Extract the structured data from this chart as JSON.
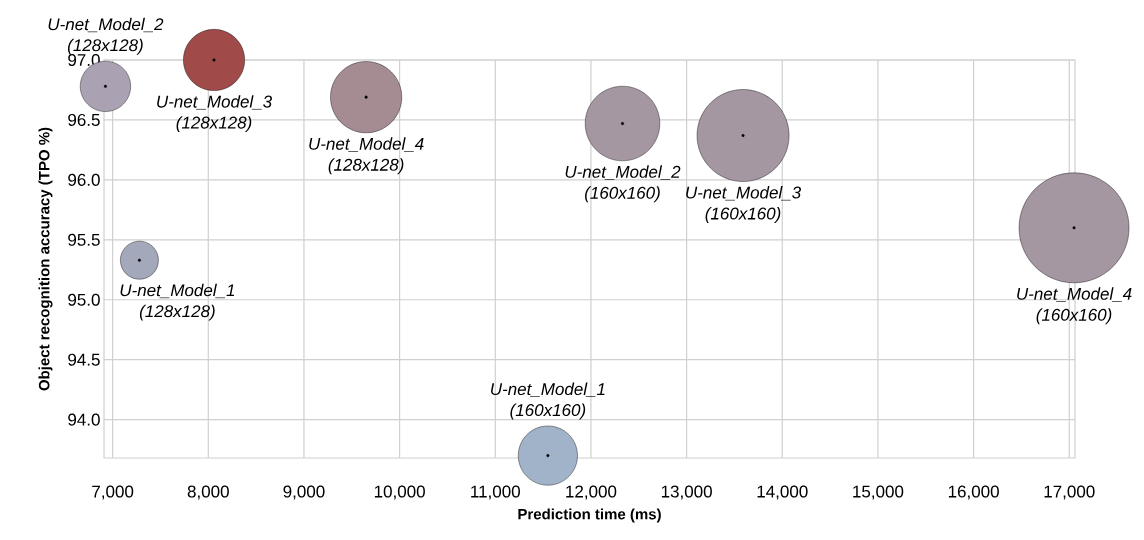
{
  "chart_data": {
    "type": "bubble",
    "xlabel": "Prediction time (ms)",
    "ylabel": "Object recognition accuracy (TPO %)",
    "xlim": [
      6910,
      17060
    ],
    "ylim": [
      93.68,
      97.0
    ],
    "xticks": [
      {
        "value": 7000,
        "label": "7,000"
      },
      {
        "value": 8000,
        "label": "8,000"
      },
      {
        "value": 9000,
        "label": "9,000"
      },
      {
        "value": 10000,
        "label": "10,000"
      },
      {
        "value": 11000,
        "label": "11,000"
      },
      {
        "value": 12000,
        "label": "12,000"
      },
      {
        "value": 13000,
        "label": "13,000"
      },
      {
        "value": 14000,
        "label": "14,000"
      },
      {
        "value": 15000,
        "label": "15,000"
      },
      {
        "value": 16000,
        "label": "16,000"
      },
      {
        "value": 17000,
        "label": "17,000"
      }
    ],
    "yticks": [
      {
        "value": 94,
        "label": "94.0"
      },
      94.5,
      {
        "value": 95,
        "label": "95.0"
      },
      95.5,
      {
        "value": 96,
        "label": "96.0"
      },
      96.5,
      {
        "value": 97,
        "label": "97.0"
      }
    ],
    "grid": true,
    "series": [
      {
        "name": "U-net_Model_2 (128x128)",
        "color": "#aaa1b2",
        "x": [
          6925
        ],
        "values": [
          96.78
        ],
        "sizes": [
          0.21
        ]
      },
      {
        "name": "U-net_Model_3 (128x128)",
        "color": "#a04a4a",
        "x": [
          8060
        ],
        "values": [
          97.0
        ],
        "sizes": [
          0.31
        ]
      },
      {
        "name": "U-net_Model_4 (128x128)",
        "color": "#a58c93",
        "x": [
          9650
        ],
        "values": [
          96.69
        ],
        "sizes": [
          0.42
        ]
      },
      {
        "name": "U-net_Model_1 (128x128)",
        "color": "#a3a8ba",
        "x": [
          7280
        ],
        "values": [
          95.33
        ],
        "sizes": [
          0.12
        ]
      },
      {
        "name": "U-net_Model_2 (160x160)",
        "color": "#a497a2",
        "x": [
          12330
        ],
        "values": [
          96.47
        ],
        "sizes": [
          0.46
        ]
      },
      {
        "name": "U-net_Model_3 (160x160)",
        "color": "#a497a2",
        "x": [
          13590
        ],
        "values": [
          96.37
        ],
        "sizes": [
          0.7
        ]
      },
      {
        "name": "U-net_Model_4 (160x160)",
        "color": "#a497a2",
        "x": [
          17050
        ],
        "values": [
          95.6
        ],
        "sizes": [
          1.0
        ]
      },
      {
        "name": "U-net_Model_1 (160x160)",
        "color": "#a0b3c9",
        "x": [
          11550
        ],
        "values": [
          93.7
        ],
        "sizes": [
          0.29
        ]
      }
    ]
  }
}
